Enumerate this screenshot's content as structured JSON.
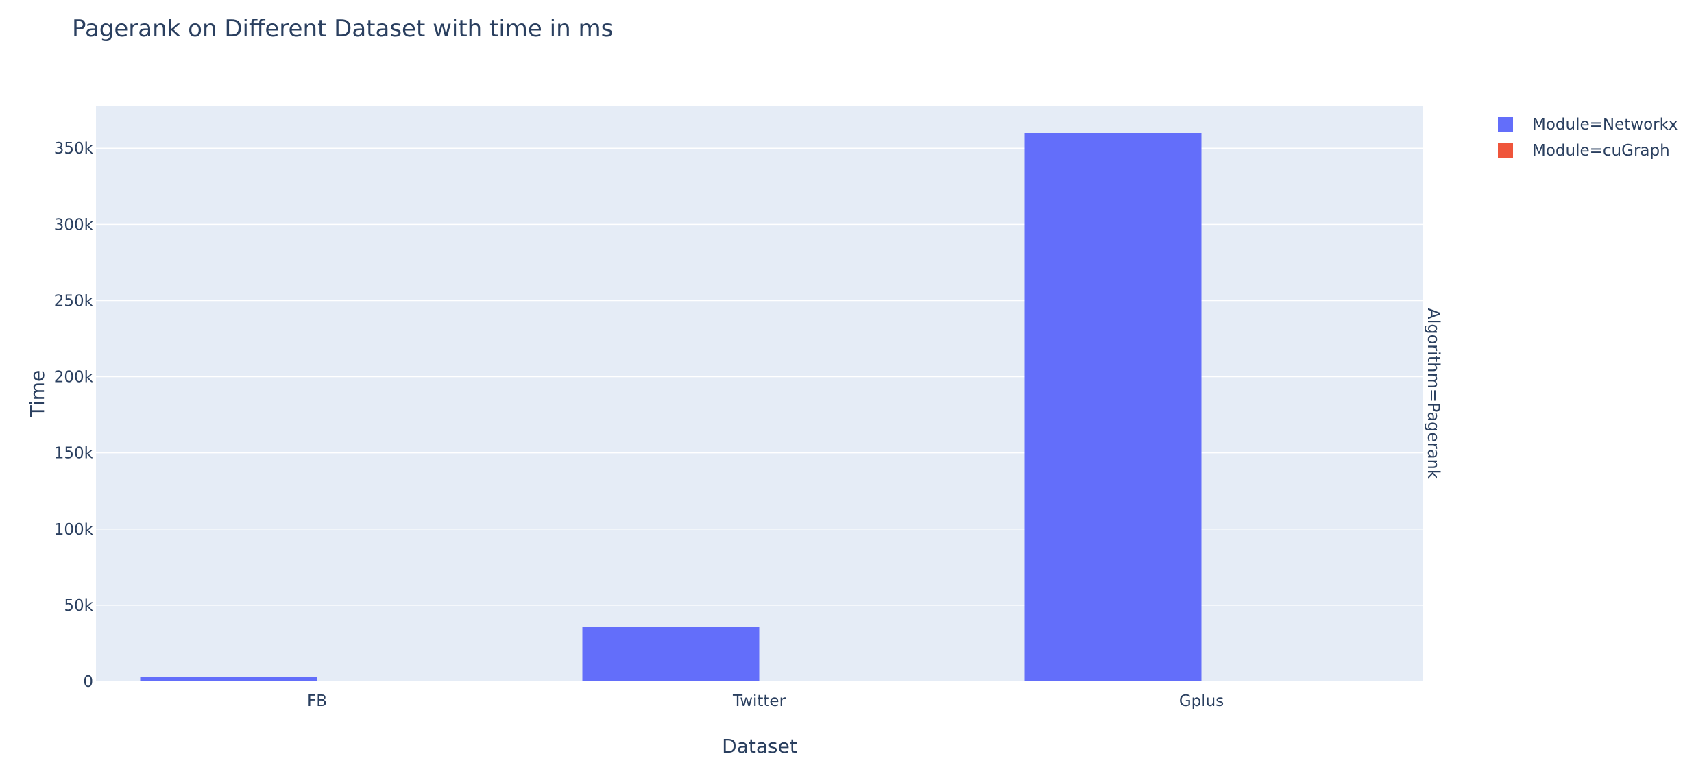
{
  "chart_data": {
    "type": "bar",
    "title": "Pagerank on Different Dataset with time in ms",
    "xlabel": "Dataset",
    "ylabel": "Time",
    "facet_label": "Algorithm=Pagerank",
    "categories": [
      "FB",
      "Twitter",
      "Gplus"
    ],
    "series": [
      {
        "name": "Module=Networkx",
        "color": "#636efa",
        "values": [
          3000,
          36000,
          360000
        ]
      },
      {
        "name": "Module=cuGraph",
        "color": "#ef553b",
        "values": [
          12,
          45,
          250
        ]
      }
    ],
    "ylim": [
      0,
      378000
    ],
    "yticks": [
      0,
      50000,
      100000,
      150000,
      200000,
      250000,
      300000,
      350000
    ],
    "ytick_labels": [
      "0",
      "50k",
      "100k",
      "150k",
      "200k",
      "250k",
      "300k",
      "350k"
    ],
    "grid": true,
    "legend_position": "top-right",
    "colors": {
      "plot_bg": "#e5ecf6",
      "grid": "#ffffff",
      "text": "#2a3f5f"
    }
  }
}
